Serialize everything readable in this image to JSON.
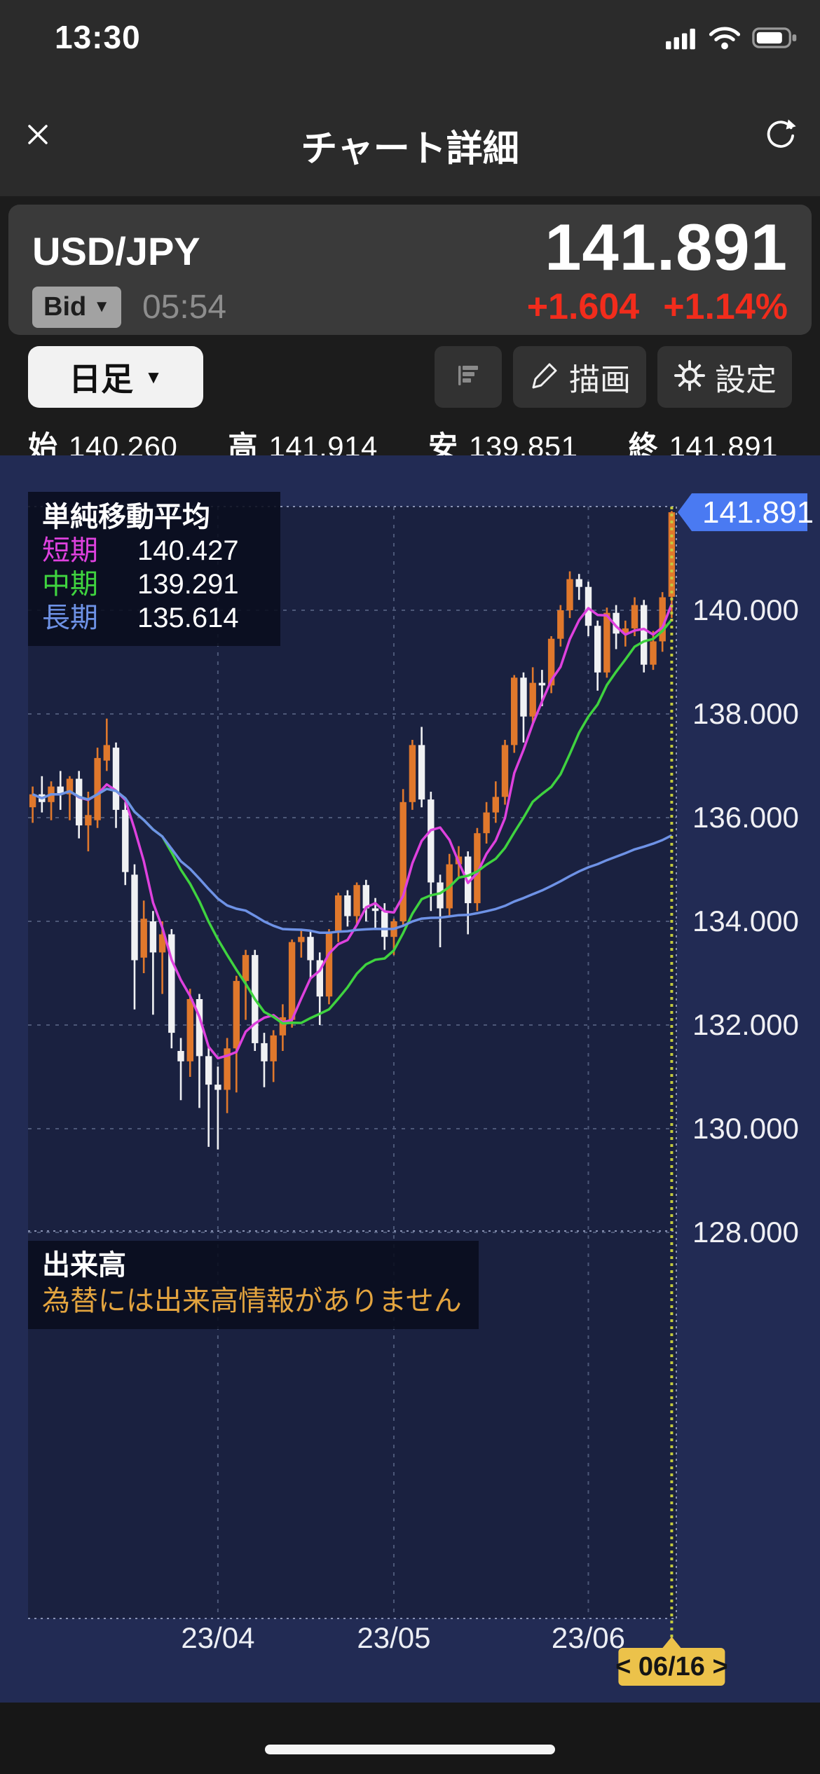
{
  "status_bar": {
    "time": "13:30"
  },
  "header": {
    "title": "チャート詳細"
  },
  "quote": {
    "pair": "USD/JPY",
    "price": "141.891",
    "side_label": "Bid",
    "quote_time": "05:54",
    "change": "+1.604",
    "change_pct": "+1.14%",
    "change_color": "#f22c1c"
  },
  "toolbar": {
    "timeframe_label": "日足",
    "draw_label": "描画",
    "settings_label": "設定"
  },
  "ohlc": {
    "items": [
      {
        "label": "始",
        "value": "140.260"
      },
      {
        "label": "高",
        "value": "141.914"
      },
      {
        "label": "安",
        "value": "139.851"
      },
      {
        "label": "終",
        "value": "141.891"
      }
    ]
  },
  "volume_pane": {
    "title": "出来高",
    "message": "為替には出来高情報がありません"
  },
  "chart_data": {
    "type": "candlestick",
    "title": "USD/JPY 日足",
    "legend_title": "単純移動平均",
    "ylim": [
      128,
      142
    ],
    "grid": true,
    "colors": {
      "up": "#e0782c",
      "down": "#f0f1f3",
      "plot_bg": "#1a2140",
      "outer_bg": "#222b54",
      "grid": "#4d5878",
      "border": "#8a93b4",
      "cursor_line": "#c2c93e",
      "tag_bg": "#4a7af2",
      "badge_bg": "#ecc24a"
    },
    "moving_averages": [
      {
        "label": "短期",
        "value": "140.427",
        "color": "#de41de",
        "window": 5
      },
      {
        "label": "中期",
        "value": "139.291",
        "color": "#3fd33f",
        "window": 15
      },
      {
        "label": "長期",
        "value": "135.614",
        "color": "#6e92e6",
        "window": 75
      }
    ],
    "y_ticks": [
      {
        "price": 140,
        "label": "140.000"
      },
      {
        "price": 138,
        "label": "138.000"
      },
      {
        "price": 136,
        "label": "136.000"
      },
      {
        "price": 134,
        "label": "134.000"
      },
      {
        "price": 132,
        "label": "132.000"
      },
      {
        "price": 130,
        "label": "130.000"
      },
      {
        "price": 128,
        "label": "128.000"
      }
    ],
    "x_ticks": [
      {
        "index": 20,
        "label": "23/04"
      },
      {
        "index": 39,
        "label": "23/05"
      },
      {
        "index": 60,
        "label": "23/06"
      }
    ],
    "last_price_label": "141.891",
    "date_badge": "< 06/16 >",
    "candles": [
      [
        136.2,
        136.6,
        135.9,
        136.45
      ],
      [
        136.45,
        136.8,
        136.1,
        136.3
      ],
      [
        136.3,
        136.7,
        135.95,
        136.6
      ],
      [
        136.6,
        136.9,
        136.15,
        136.45
      ],
      [
        136.45,
        136.8,
        135.95,
        136.75
      ],
      [
        136.75,
        136.9,
        135.6,
        135.85
      ],
      [
        135.85,
        136.5,
        135.35,
        136.05
      ],
      [
        135.95,
        137.35,
        135.8,
        137.15
      ],
      [
        137.1,
        137.91,
        136.9,
        137.4
      ],
      [
        137.35,
        137.45,
        135.8,
        136.15
      ],
      [
        136.15,
        136.3,
        134.7,
        134.95
      ],
      [
        134.9,
        135.1,
        132.3,
        133.25
      ],
      [
        133.3,
        134.4,
        133.0,
        134.05
      ],
      [
        134.0,
        134.2,
        132.2,
        133.4
      ],
      [
        133.4,
        134.0,
        132.6,
        133.75
      ],
      [
        133.75,
        133.85,
        131.55,
        131.85
      ],
      [
        131.5,
        131.75,
        130.55,
        131.3
      ],
      [
        131.3,
        132.7,
        131.0,
        132.5
      ],
      [
        132.5,
        132.6,
        130.4,
        131.4
      ],
      [
        131.4,
        131.6,
        129.65,
        130.85
      ],
      [
        130.85,
        131.2,
        129.6,
        130.75
      ],
      [
        130.75,
        131.75,
        130.3,
        131.55
      ],
      [
        131.55,
        132.95,
        130.7,
        132.85
      ],
      [
        132.85,
        133.45,
        132.1,
        133.35
      ],
      [
        133.35,
        133.45,
        131.5,
        131.65
      ],
      [
        131.65,
        131.85,
        130.8,
        131.3
      ],
      [
        131.3,
        131.9,
        130.9,
        131.8
      ],
      [
        131.8,
        132.4,
        131.5,
        132.15
      ],
      [
        132.1,
        133.65,
        131.95,
        133.6
      ],
      [
        133.6,
        133.85,
        133.3,
        133.7
      ],
      [
        133.7,
        133.8,
        132.9,
        133.25
      ],
      [
        133.25,
        133.4,
        132.0,
        132.55
      ],
      [
        132.55,
        133.85,
        132.4,
        133.8
      ],
      [
        133.8,
        134.55,
        133.6,
        134.5
      ],
      [
        134.5,
        134.6,
        133.9,
        134.1
      ],
      [
        134.1,
        134.75,
        133.95,
        134.7
      ],
      [
        134.7,
        134.8,
        134.0,
        134.25
      ],
      [
        134.25,
        134.45,
        133.85,
        134.2
      ],
      [
        134.2,
        134.35,
        133.45,
        133.7
      ],
      [
        133.7,
        134.05,
        133.35,
        134.0
      ],
      [
        134.0,
        136.55,
        133.9,
        136.3
      ],
      [
        136.3,
        137.5,
        136.15,
        137.4
      ],
      [
        137.4,
        137.75,
        136.2,
        136.35
      ],
      [
        136.35,
        136.5,
        134.2,
        134.75
      ],
      [
        134.75,
        134.9,
        133.5,
        134.25
      ],
      [
        134.25,
        135.3,
        134.1,
        135.1
      ],
      [
        135.1,
        135.45,
        134.85,
        135.25
      ],
      [
        135.25,
        135.35,
        133.75,
        134.35
      ],
      [
        134.35,
        135.8,
        134.2,
        135.7
      ],
      [
        135.7,
        136.3,
        135.5,
        136.1
      ],
      [
        136.1,
        136.7,
        135.9,
        136.4
      ],
      [
        136.4,
        137.5,
        136.25,
        137.4
      ],
      [
        137.4,
        138.75,
        137.25,
        138.7
      ],
      [
        138.7,
        138.8,
        137.45,
        137.95
      ],
      [
        137.95,
        138.9,
        137.8,
        138.6
      ],
      [
        138.6,
        138.85,
        138.15,
        138.55
      ],
      [
        138.55,
        139.5,
        138.4,
        139.45
      ],
      [
        139.45,
        140.1,
        139.3,
        140.0
      ],
      [
        140.0,
        140.75,
        139.85,
        140.6
      ],
      [
        140.6,
        140.7,
        140.2,
        140.45
      ],
      [
        140.45,
        140.55,
        139.5,
        139.7
      ],
      [
        139.7,
        139.8,
        138.45,
        138.8
      ],
      [
        138.8,
        140.05,
        138.7,
        139.95
      ],
      [
        139.95,
        140.1,
        139.25,
        139.55
      ],
      [
        139.55,
        139.8,
        139.3,
        139.65
      ],
      [
        139.65,
        140.25,
        139.5,
        140.1
      ],
      [
        140.1,
        140.2,
        138.8,
        138.95
      ],
      [
        138.95,
        139.6,
        138.85,
        139.4
      ],
      [
        139.4,
        140.35,
        139.2,
        140.25
      ],
      [
        140.26,
        141.914,
        139.851,
        141.891
      ]
    ]
  }
}
